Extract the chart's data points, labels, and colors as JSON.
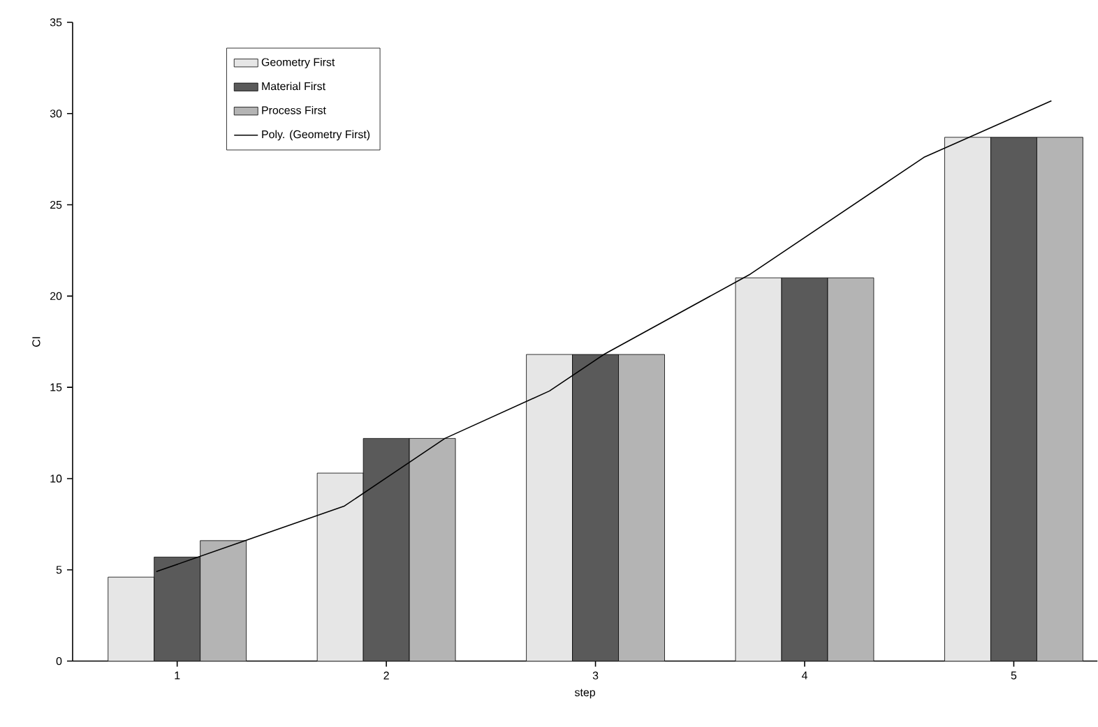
{
  "chart_data": {
    "type": "bar",
    "xlabel": "step",
    "ylabel": "CI",
    "x": [
      1,
      2,
      3,
      4,
      5
    ],
    "series": [
      {
        "name": "Geometry First",
        "color": "#e6e6e6",
        "values": [
          4.6,
          10.3,
          16.8,
          21.0,
          28.7
        ]
      },
      {
        "name": "Material First",
        "color": "#5a5a5a",
        "values": [
          5.7,
          12.2,
          16.8,
          21.0,
          28.7
        ]
      },
      {
        "name": "Process First",
        "color": "#b4b4b4",
        "values": [
          6.6,
          12.2,
          16.8,
          21.0,
          28.7
        ]
      },
      {
        "name": "Poly. (Geometry First)",
        "type": "line",
        "color": "#000000",
        "x": [
          0.9,
          1.3,
          1.8,
          2.28,
          2.78,
          3.04,
          3.74,
          4.57,
          5.18
        ],
        "values": [
          4.9,
          6.5,
          8.5,
          12.2,
          14.8,
          16.8,
          21.2,
          27.6,
          30.7
        ]
      }
    ],
    "xlim": [
      0.5,
      5.4
    ],
    "ylim": [
      0,
      35
    ],
    "xticks": [
      1,
      2,
      3,
      4,
      5
    ],
    "yticks": [
      0,
      5,
      10,
      15,
      20,
      25,
      30,
      35
    ],
    "legend": "top left",
    "grid": false,
    "marker": "none"
  }
}
